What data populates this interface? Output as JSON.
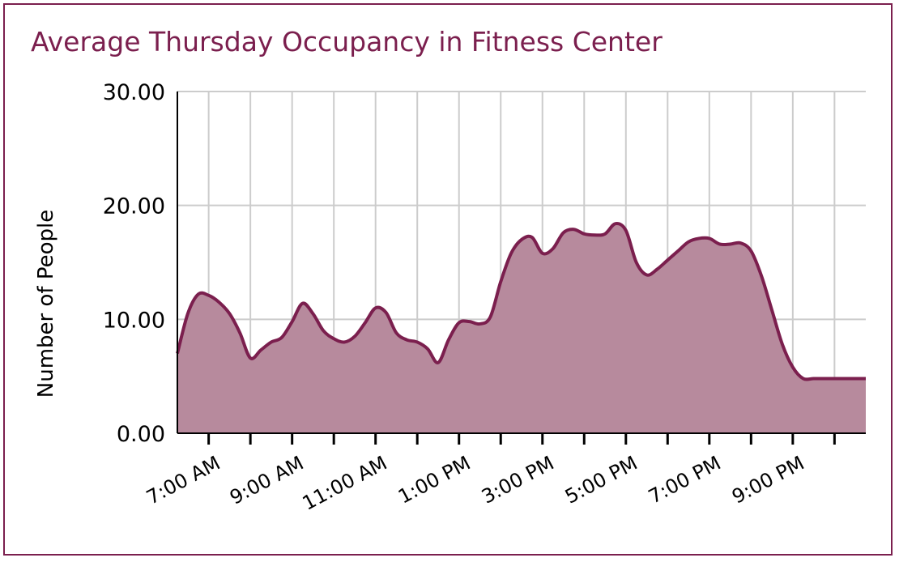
{
  "chart_data": {
    "type": "area",
    "title": "Average Thursday Occupancy in Fitness Center",
    "xlabel": "",
    "ylabel": "Number of People",
    "ylim": [
      0,
      30
    ],
    "xlim": [
      6.25,
      22.75
    ],
    "grid": true,
    "legend": "none",
    "y_ticks": [
      0,
      10,
      20,
      30
    ],
    "y_tick_labels": [
      "0.00",
      "10.00",
      "20.00",
      "30.00"
    ],
    "x_ticks": [
      7,
      9,
      11,
      13,
      15,
      17,
      19,
      21
    ],
    "x_tick_labels": [
      "7:00 AM",
      "9:00 AM",
      "11:00 AM",
      "1:00 PM",
      "3:00 PM",
      "5:00 PM",
      "7:00 PM",
      "9:00 PM"
    ],
    "x_minor_ticks": [
      7,
      8,
      9,
      10,
      11,
      12,
      13,
      14,
      15,
      16,
      17,
      18,
      19,
      20,
      21,
      22
    ],
    "colors": {
      "line": "#7b1f4e",
      "fill": "#b78a9d",
      "grid": "#cccccc"
    },
    "series": [
      {
        "x": [
          6.25,
          6.5,
          6.75,
          7.0,
          7.25,
          7.5,
          7.75,
          8.0,
          8.25,
          8.5,
          8.75,
          9.0,
          9.25,
          9.5,
          9.75,
          10.0,
          10.25,
          10.5,
          10.75,
          11.0,
          11.25,
          11.5,
          11.75,
          12.0,
          12.25,
          12.5,
          12.75,
          13.0,
          13.25,
          13.5,
          13.75,
          14.0,
          14.25,
          14.5,
          14.75,
          15.0,
          15.25,
          15.5,
          15.75,
          16.0,
          16.25,
          16.5,
          16.75,
          17.0,
          17.25,
          17.5,
          17.75,
          18.0,
          18.25,
          18.5,
          18.75,
          19.0,
          19.25,
          19.5,
          19.75,
          20.0,
          20.25,
          20.5,
          20.75,
          21.0,
          21.25,
          21.5,
          21.75,
          22.0,
          22.25,
          22.5,
          22.75
        ],
        "values": [
          7.0,
          10.5,
          12.2,
          12.1,
          11.5,
          10.5,
          8.8,
          6.6,
          7.3,
          8.0,
          8.4,
          9.8,
          11.4,
          10.5,
          9.0,
          8.3,
          8.0,
          8.5,
          9.7,
          11.0,
          10.6,
          8.8,
          8.2,
          8.0,
          7.4,
          6.2,
          8.2,
          9.7,
          9.8,
          9.6,
          10.2,
          13.3,
          15.8,
          17.0,
          17.2,
          15.8,
          16.2,
          17.6,
          17.9,
          17.5,
          17.4,
          17.5,
          18.4,
          17.8,
          15.0,
          13.9,
          14.4,
          15.2,
          16.0,
          16.8,
          17.1,
          17.1,
          16.6,
          16.6,
          16.7,
          16.0,
          13.8,
          10.8,
          7.8,
          5.8,
          4.8,
          4.8,
          4.8,
          4.8,
          4.8,
          4.8,
          4.8
        ]
      }
    ]
  }
}
